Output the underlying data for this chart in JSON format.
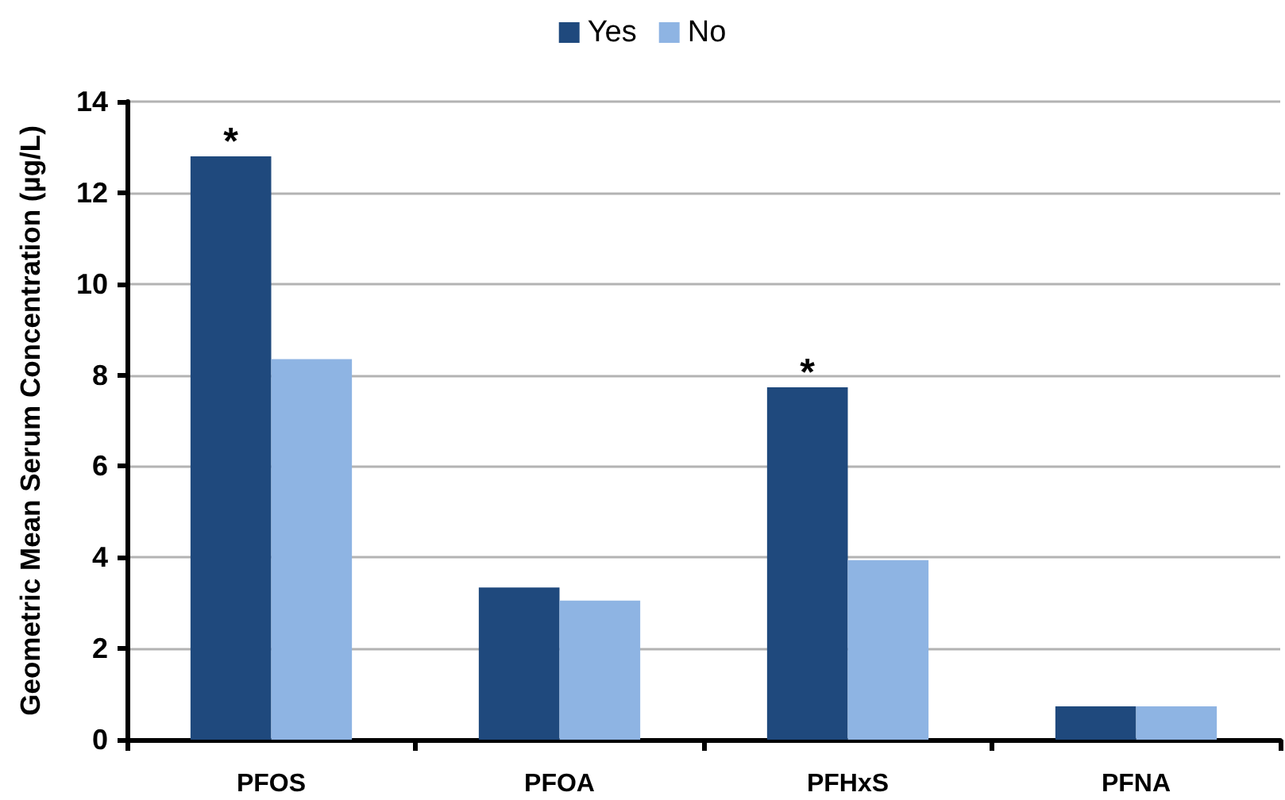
{
  "chart_data": {
    "type": "bar",
    "ylabel": "Geometric Mean Serum Concentration (µg/L)",
    "categories": [
      "PFOS",
      "PFOA",
      "PFHxS",
      "PFNA"
    ],
    "series": [
      {
        "name": "Yes",
        "color": "#1f497d",
        "values": [
          12.8,
          3.34,
          7.73,
          0.73
        ]
      },
      {
        "name": "No",
        "color": "#8eb4e3",
        "values": [
          8.35,
          3.05,
          3.94,
          0.73
        ]
      }
    ],
    "ylim": [
      0,
      14
    ],
    "yticks": [
      0,
      2,
      4,
      6,
      8,
      10,
      12,
      14
    ],
    "grid": "y",
    "legend": "top",
    "annotations": [
      {
        "text": "*",
        "x": "PFOS",
        "y": 12.8
      },
      {
        "text": "*",
        "x": "PFHxS",
        "y": 7.73
      }
    ]
  }
}
